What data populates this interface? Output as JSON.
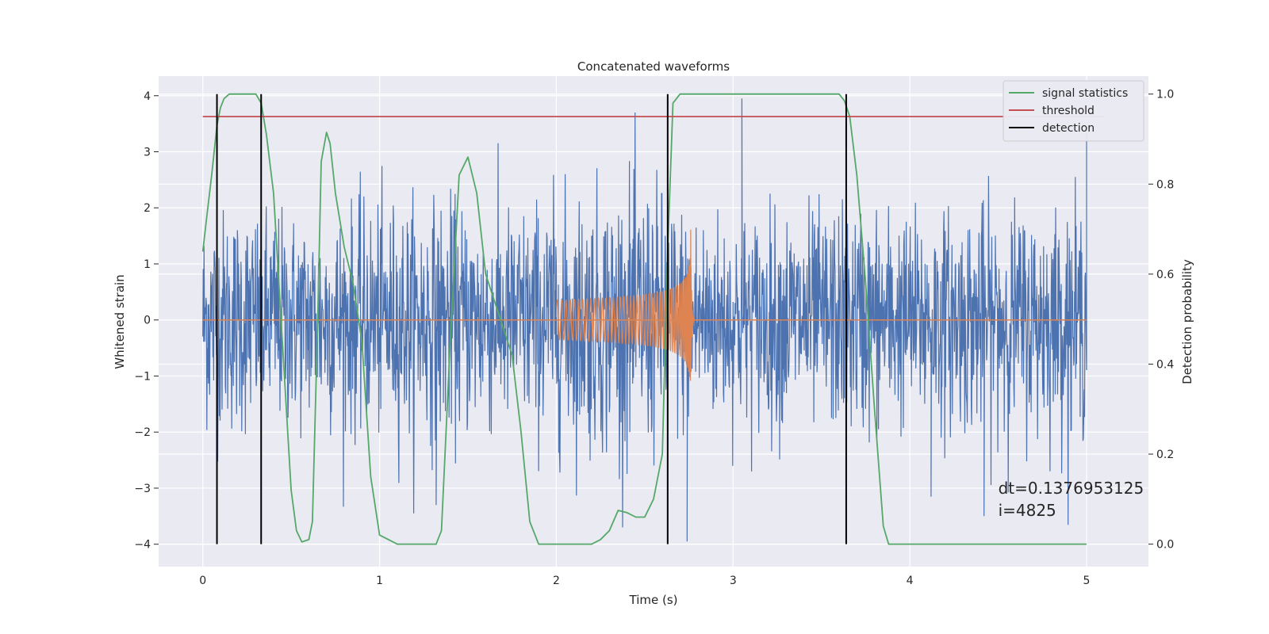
{
  "chart_data": {
    "type": "line",
    "title": "Concatenated waveforms",
    "xlabel": "Time (s)",
    "ylabel": "Whitened strain",
    "ylabel_right": "Detection probability",
    "xlim": [
      -0.25,
      5.35
    ],
    "ylim": [
      -4.4,
      4.35
    ],
    "ylim_right": [
      -0.05,
      1.04
    ],
    "x_ticks": [
      0,
      1,
      2,
      3,
      4,
      5
    ],
    "y_ticks": [
      -4,
      -3,
      -2,
      -1,
      0,
      1,
      2,
      3,
      4
    ],
    "y_ticks_right": [
      0.0,
      0.2,
      0.4,
      0.6,
      0.8,
      1.0
    ],
    "x_tick_labels": [
      "0",
      "1",
      "2",
      "3",
      "4",
      "5"
    ],
    "y_tick_labels": [
      "−4",
      "−3",
      "−2",
      "−1",
      "0",
      "1",
      "2",
      "3",
      "4"
    ],
    "y_tick_labels_right": [
      "0.0",
      "0.2",
      "0.4",
      "0.6",
      "0.8",
      "1.0"
    ],
    "grid": true,
    "legend_position": "top-right",
    "series": [
      {
        "name": "",
        "kind": "noise",
        "axis": "left",
        "color": "#4c72b0",
        "x_range": [
          0,
          5
        ],
        "envelope": [
          2.5,
          2.6,
          2.4,
          2.5,
          2.6,
          2.7,
          2.6,
          2.5,
          2.8,
          3.0,
          3.2,
          2.5,
          2.4,
          2.5,
          2.5,
          2.6,
          2.4,
          2.5,
          2.6,
          2.5,
          2.6
        ],
        "envelope_x": [
          0,
          0.25,
          0.5,
          0.75,
          1.0,
          1.25,
          1.5,
          1.75,
          2.0,
          2.25,
          2.5,
          2.75,
          3.0,
          3.25,
          3.5,
          3.75,
          4.0,
          4.25,
          4.5,
          4.75,
          5.0
        ],
        "peaks": [
          {
            "x": 1.32,
            "y": -3.3
          },
          {
            "x": 2.74,
            "y": -3.95
          },
          {
            "x": 3.05,
            "y": 3.95
          },
          {
            "x": 4.12,
            "y": -3.15
          },
          {
            "x": 4.42,
            "y": -3.5
          },
          {
            "x": 5.0,
            "y": 3.35
          }
        ]
      },
      {
        "name": "",
        "kind": "chirp",
        "axis": "left",
        "color": "#dd8452",
        "x_range": [
          2.0,
          2.78
        ],
        "merger_x": 2.76,
        "peak_amplitude": 1.8,
        "start_amplitude": 0.35
      },
      {
        "name": "signal statistics",
        "axis": "right",
        "color": "#55a868",
        "x": [
          0.0,
          0.02,
          0.05,
          0.08,
          0.1,
          0.12,
          0.15,
          0.2,
          0.3,
          0.33,
          0.36,
          0.4,
          0.45,
          0.5,
          0.53,
          0.56,
          0.6,
          0.62,
          0.65,
          0.67,
          0.7,
          0.72,
          0.75,
          0.8,
          0.85,
          0.9,
          0.95,
          1.0,
          1.1,
          1.3,
          1.32,
          1.35,
          1.4,
          1.45,
          1.5,
          1.55,
          1.6,
          1.65,
          1.7,
          1.75,
          1.8,
          1.85,
          1.9,
          2.0,
          2.2,
          2.25,
          2.3,
          2.35,
          2.4,
          2.45,
          2.5,
          2.55,
          2.6,
          2.63,
          2.66,
          2.7,
          3.0,
          3.5,
          3.6,
          3.63,
          3.66,
          3.7,
          3.75,
          3.8,
          3.85,
          3.88,
          4.0,
          5.0
        ],
        "y": [
          0.65,
          0.72,
          0.82,
          0.93,
          0.97,
          0.99,
          1.0,
          1.0,
          1.0,
          0.98,
          0.91,
          0.78,
          0.45,
          0.12,
          0.03,
          0.005,
          0.01,
          0.05,
          0.5,
          0.85,
          0.915,
          0.89,
          0.78,
          0.66,
          0.58,
          0.45,
          0.15,
          0.02,
          0.0,
          0.0,
          0.0,
          0.03,
          0.45,
          0.82,
          0.86,
          0.78,
          0.6,
          0.54,
          0.48,
          0.42,
          0.25,
          0.05,
          0.0,
          0.0,
          0.0,
          0.01,
          0.03,
          0.075,
          0.07,
          0.06,
          0.06,
          0.1,
          0.2,
          0.65,
          0.98,
          1.0,
          1.0,
          1.0,
          1.0,
          0.985,
          0.95,
          0.82,
          0.58,
          0.3,
          0.04,
          0.0,
          0.0,
          0.0
        ]
      },
      {
        "name": "threshold",
        "axis": "right",
        "color": "#c44e52",
        "x": [
          0,
          5.1
        ],
        "y": [
          0.95,
          0.95
        ]
      },
      {
        "name": "detection",
        "kind": "vlines",
        "axis": "right",
        "color": "#000000",
        "x": [
          0.08,
          0.33,
          2.63,
          3.64
        ],
        "y_range": [
          0.0,
          1.0
        ]
      }
    ],
    "annotation": {
      "lines": [
        "dt=0.1376953125",
        " i=4825"
      ],
      "x": 4.5,
      "y": -3.1
    }
  }
}
